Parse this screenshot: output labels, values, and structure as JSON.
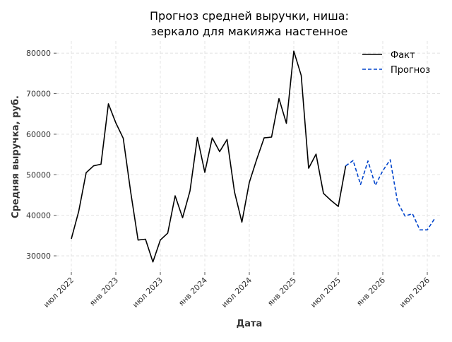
{
  "chart_data": {
    "type": "line",
    "title_lines": [
      "Прогноз средней выручки, ниша:",
      "зеркало для макияжа настенное"
    ],
    "xlabel": "Дата",
    "ylabel": "Средняя выручка, руб.",
    "ylim": [
      26000,
      83000
    ],
    "y_ticks": [
      30000,
      40000,
      50000,
      60000,
      70000,
      80000
    ],
    "x_ticks": [
      {
        "date": "2022-07",
        "label": "июл 2022"
      },
      {
        "date": "2023-01",
        "label": "янв 2023"
      },
      {
        "date": "2023-07",
        "label": "июл 2023"
      },
      {
        "date": "2024-01",
        "label": "янв 2024"
      },
      {
        "date": "2024-07",
        "label": "июл 2024"
      },
      {
        "date": "2025-01",
        "label": "янв 2025"
      },
      {
        "date": "2025-07",
        "label": "июл 2025"
      },
      {
        "date": "2026-01",
        "label": "янв 2026"
      },
      {
        "date": "2026-07",
        "label": "июл 2026"
      }
    ],
    "x_range": [
      "2022-05",
      "2026-09"
    ],
    "grid": true,
    "legend_position": "top-right",
    "series": [
      {
        "name": "Факт",
        "color": "#000000",
        "dash": "solid",
        "x": [
          "2022-07",
          "2022-08",
          "2022-09",
          "2022-10",
          "2022-11",
          "2022-12",
          "2023-01",
          "2023-02",
          "2023-03",
          "2023-04",
          "2023-05",
          "2023-06",
          "2023-07",
          "2023-08",
          "2023-09",
          "2023-10",
          "2023-11",
          "2023-12",
          "2024-01",
          "2024-02",
          "2024-03",
          "2024-04",
          "2024-05",
          "2024-06",
          "2024-07",
          "2024-08",
          "2024-09",
          "2024-10",
          "2024-11",
          "2024-12",
          "2025-01",
          "2025-02",
          "2025-03",
          "2025-04",
          "2025-05",
          "2025-06",
          "2025-07",
          "2025-08"
        ],
        "values": [
          34200,
          41000,
          50500,
          52200,
          52600,
          67500,
          62800,
          59000,
          45800,
          33900,
          34100,
          28500,
          33900,
          35600,
          44800,
          39400,
          46000,
          59200,
          50600,
          59100,
          55700,
          58700,
          45800,
          38300,
          48100,
          53800,
          59100,
          59300,
          68800,
          62700,
          80500,
          74500,
          51600,
          55100,
          45400,
          43700,
          42200,
          52200
        ]
      },
      {
        "name": "Прогноз",
        "color": "#0044cc",
        "dash": "dashed",
        "x": [
          "2025-08",
          "2025-09",
          "2025-10",
          "2025-11",
          "2025-12",
          "2026-01",
          "2026-02",
          "2026-03",
          "2026-04",
          "2026-05",
          "2026-06",
          "2026-07",
          "2026-08"
        ],
        "values": [
          52200,
          53500,
          47600,
          53400,
          47400,
          51000,
          53700,
          43200,
          39800,
          40400,
          36400,
          36400,
          39200
        ]
      }
    ]
  }
}
